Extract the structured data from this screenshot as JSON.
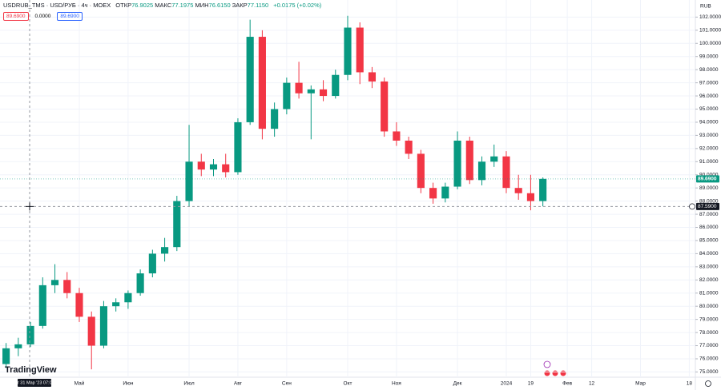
{
  "header": {
    "symbol": "USDRUB_TMS · USD/РУБ · 4ч · MOEX",
    "ohlc": [
      {
        "label": "ОТКР",
        "value": "76.9025"
      },
      {
        "label": "МАКС",
        "value": "77.1975"
      },
      {
        "label": "МИН",
        "value": "76.6150"
      },
      {
        "label": "ЗАКР",
        "value": "77.1150"
      }
    ],
    "change": "+0.0175 (+0.02%)",
    "buttons": [
      "89.6900",
      "0.0000",
      "89.6900"
    ],
    "currency": "RUB",
    "logo": "TradingView"
  },
  "chart_data": {
    "type": "candlestick",
    "categories": [
      null,
      null,
      null,
      null,
      null,
      null,
      "Май",
      null,
      null,
      null,
      "Июн",
      null,
      null,
      null,
      null,
      "Июл",
      null,
      null,
      null,
      "Авг",
      null,
      null,
      null,
      "Сен",
      null,
      null,
      null,
      null,
      "Окт",
      null,
      null,
      null,
      "Ноя",
      null,
      null,
      null,
      null,
      "Дек",
      null,
      null,
      null,
      "2024",
      null,
      "19",
      null,
      null,
      "Фев",
      null,
      "12",
      null,
      null,
      null,
      "Мар",
      null,
      null,
      null,
      "18"
    ],
    "open": [
      75.6,
      76.8,
      77.1,
      78.5,
      81.6,
      82.0,
      81.0,
      79.2,
      77.0,
      80.0,
      80.3,
      81.0,
      82.5,
      84.0,
      84.5,
      88.0,
      91.0,
      90.4,
      90.8,
      90.2,
      94.0,
      100.5,
      93.5,
      95.0,
      97.0,
      96.2,
      96.5,
      96.0,
      97.6,
      101.2,
      97.8,
      97.1,
      93.3,
      92.6,
      91.6,
      89.0,
      88.2,
      89.1,
      92.6,
      89.6,
      91.0,
      91.4,
      89.0,
      88.6,
      88.0,
      null,
      null,
      null,
      null,
      null,
      null,
      null,
      null,
      null,
      null,
      null,
      null
    ],
    "high": [
      77.2,
      77.6,
      78.8,
      82.2,
      83.2,
      82.6,
      81.4,
      79.6,
      80.4,
      80.6,
      81.2,
      82.8,
      84.3,
      85.2,
      88.4,
      93.8,
      91.6,
      91.2,
      91.6,
      94.3,
      101.8,
      101.0,
      95.5,
      97.4,
      98.6,
      96.8,
      97.2,
      98.0,
      102.1,
      101.6,
      98.2,
      97.4,
      94.0,
      92.9,
      91.9,
      89.4,
      89.4,
      93.3,
      92.9,
      91.4,
      92.3,
      91.8,
      90.0,
      90.0,
      89.8,
      null,
      null,
      null,
      null,
      null,
      null,
      null,
      null,
      null,
      null,
      null,
      null
    ],
    "low": [
      75.3,
      76.2,
      76.9,
      78.3,
      81.0,
      80.6,
      78.8,
      75.2,
      76.8,
      79.6,
      79.8,
      80.8,
      82.2,
      83.4,
      84.2,
      87.6,
      89.9,
      89.9,
      89.8,
      90.0,
      93.8,
      92.7,
      92.9,
      94.6,
      95.8,
      92.7,
      95.6,
      95.8,
      97.2,
      96.9,
      96.6,
      92.9,
      92.2,
      91.2,
      88.6,
      87.8,
      87.9,
      88.9,
      89.3,
      89.2,
      90.6,
      88.6,
      88.1,
      87.3,
      87.6,
      null,
      null,
      null,
      null,
      null,
      null,
      null,
      null,
      null,
      null,
      null,
      null
    ],
    "close": [
      76.8,
      77.1,
      78.5,
      81.6,
      82.0,
      81.0,
      79.2,
      77.0,
      80.0,
      80.3,
      81.0,
      82.5,
      84.0,
      84.5,
      88.0,
      91.0,
      90.4,
      90.8,
      90.2,
      94.0,
      100.5,
      93.5,
      95.0,
      97.0,
      96.2,
      96.5,
      96.0,
      97.6,
      101.2,
      97.8,
      97.1,
      93.3,
      92.6,
      91.6,
      89.0,
      88.2,
      89.1,
      92.6,
      89.6,
      91.0,
      91.4,
      89.0,
      88.6,
      88.0,
      89.69,
      null,
      null,
      null,
      null,
      null,
      null,
      null,
      null,
      null,
      null,
      null,
      null
    ],
    "up_color": "#089981",
    "down_color": "#f23645",
    "ylim": [
      74.6,
      103.3
    ],
    "yticks": [
      {
        "value": 75,
        "label": "75.0000"
      },
      {
        "value": 76,
        "label": "76.0000"
      },
      {
        "value": 77,
        "label": "77.0000"
      },
      {
        "value": 78,
        "label": "78.0000"
      },
      {
        "value": 79,
        "label": "79.0000"
      },
      {
        "value": 80,
        "label": "80.0000"
      },
      {
        "value": 81,
        "label": "81.0000"
      },
      {
        "value": 82,
        "label": "82.0000"
      },
      {
        "value": 83,
        "label": "83.0000"
      },
      {
        "value": 84,
        "label": "84.0000"
      },
      {
        "value": 85,
        "label": "85.0000"
      },
      {
        "value": 86,
        "label": "86.0000"
      },
      {
        "value": 87,
        "label": "87.0000"
      },
      {
        "value": 88,
        "label": "88.0000"
      },
      {
        "value": 89,
        "label": "89.0000"
      },
      {
        "value": 90,
        "label": "90.0000"
      },
      {
        "value": 91,
        "label": "91.0000"
      },
      {
        "value": 92,
        "label": "92.0000"
      },
      {
        "value": 93,
        "label": "93.0000"
      },
      {
        "value": 94,
        "label": "94.0000"
      },
      {
        "value": 95,
        "label": "95.0000"
      },
      {
        "value": 96,
        "label": "96.0000"
      },
      {
        "value": 97,
        "label": "97.0000"
      },
      {
        "value": 98,
        "label": "98.0000"
      },
      {
        "value": 99,
        "label": "99.0000"
      },
      {
        "value": 100,
        "label": "100.0000"
      },
      {
        "value": 101,
        "label": "101.0000"
      },
      {
        "value": 102,
        "label": "102.0000"
      }
    ],
    "grid": true,
    "last_price": {
      "value": 89.69,
      "label": "89.6900"
    },
    "crosshair": {
      "date": "пт 31 Мар '23 07:00",
      "price": {
        "value": 87.59,
        "label": "87.5900"
      }
    }
  }
}
